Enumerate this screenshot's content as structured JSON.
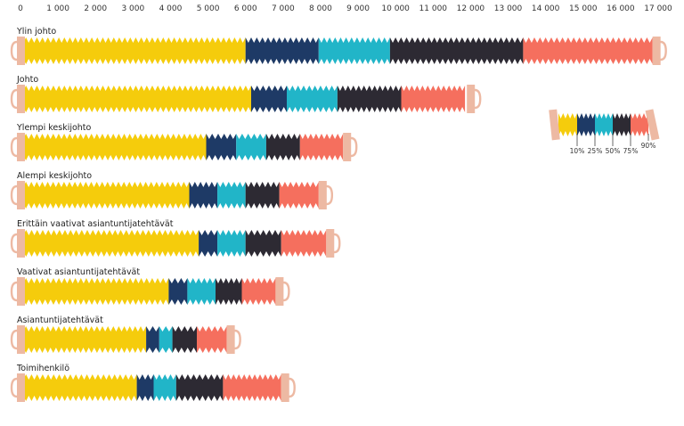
{
  "chart_data": {
    "type": "bar",
    "xlim": [
      0,
      17000
    ],
    "ticks": [
      0,
      1000,
      2000,
      3000,
      4000,
      5000,
      6000,
      7000,
      8000,
      9000,
      10000,
      11000,
      12000,
      13000,
      14000,
      15000,
      16000,
      17000
    ],
    "tick_labels": [
      "0",
      "1 000",
      "2 000",
      "3 000",
      "4 000",
      "5 000",
      "6 000",
      "7 000",
      "8 000",
      "9 000",
      "10 000",
      "11 000",
      "12 000",
      "13 000",
      "14 000",
      "15 000",
      "16 000",
      "17 000"
    ],
    "segment_colors": [
      "#F5CC0C",
      "#1E3A66",
      "#21B5C8",
      "#2D2A33",
      "#F56F5E"
    ],
    "cap_color": "#EDB9A3",
    "categories": [
      {
        "label": "Ylin johto",
        "p10": 6000,
        "p25": 7950,
        "p50": 9850,
        "p75": 13400,
        "p90": 16850
      },
      {
        "label": "Johto",
        "p10": 6150,
        "p25": 7100,
        "p50": 8450,
        "p75": 10150,
        "p75_end": 11850,
        "p90": 11900
      },
      {
        "label": "Ylempi keskijohto",
        "p10": 4950,
        "p25": 5750,
        "p50": 6550,
        "p75": 7450,
        "p90": 8600
      },
      {
        "label": "Alempi keskijohto",
        "p10": 4500,
        "p25": 5250,
        "p50": 6000,
        "p75": 6900,
        "p90": 7950
      },
      {
        "label": "Erittäin vaativat asiantuntijatehtävät",
        "p10": 4750,
        "p25": 5250,
        "p50": 6000,
        "p75": 6950,
        "p90": 8150
      },
      {
        "label": "Vaativat asiantuntijatehtävät",
        "p10": 3950,
        "p25": 4450,
        "p50": 5200,
        "p75": 5900,
        "p90": 6800
      },
      {
        "label": "Asiantuntijatehtävät",
        "p10": 3350,
        "p25": 3700,
        "p50": 4050,
        "p75": 4700,
        "p90": 5500
      },
      {
        "label": "Toimihenkilö",
        "p10": 3100,
        "p25": 3550,
        "p50": 4150,
        "p75": 5400,
        "p90": 6950
      }
    ],
    "legend": {
      "labels": [
        "10%",
        "25%",
        "50%",
        "75%",
        "90%"
      ],
      "placement": "right"
    }
  }
}
